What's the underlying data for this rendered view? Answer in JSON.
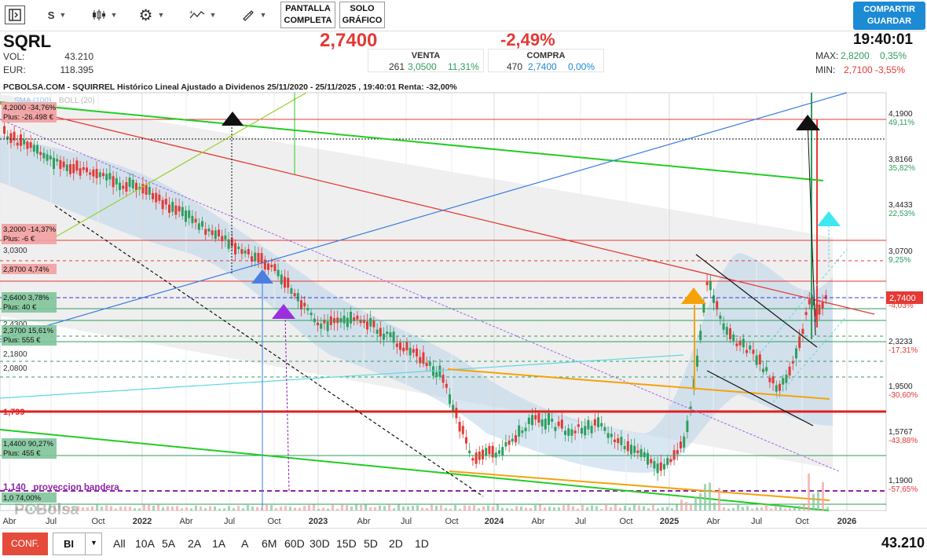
{
  "toolbar": {
    "symbol_button": "S",
    "fullscreen_label_1": "PANTALLA",
    "fullscreen_label_2": "COMPLETA",
    "chart_only_label_1": "SOLO",
    "chart_only_label_2": "GRÁFICO",
    "share_label_1": "COMPARTIR",
    "share_label_2": "GUARDAR"
  },
  "header": {
    "ticker": "SQRL",
    "vol_label": "VOL:",
    "vol_value": "43.210",
    "eur_label": "EUR:",
    "eur_value": "118.395",
    "last_price": "2,7400",
    "change_pct": "-2,49%",
    "time": "19:40:01",
    "sell": {
      "label": "VENTA",
      "qty": "261",
      "price": "3,0500",
      "pct": "11,31%"
    },
    "buy": {
      "label": "COMPRA",
      "qty": "470",
      "price": "2,7400",
      "pct": "0,00%"
    },
    "max_label": "MAX:",
    "max_value": "2,8200",
    "max_pct": "0,35%",
    "min_label": "MIN:",
    "min_value": "2,7100",
    "min_pct": "-3,55%"
  },
  "chart_data": {
    "type": "candlestick",
    "title": "PCBOLSA.COM - SQUIRREL Histórico Lineal Ajustado a Dividenos 25/11/2020 - 25/11/2025 , 19:40:01 Renta: -32,00%",
    "indicators": [
      "SMA (100)",
      "BOLL (20)"
    ],
    "x_ticks": [
      "Abr",
      "Jul",
      "Oct",
      "2022",
      "Abr",
      "Jul",
      "Oct",
      "2023",
      "Abr",
      "Jul",
      "Oct",
      "2024",
      "Abr",
      "Jul",
      "Oct",
      "2025",
      "Abr",
      "Jul",
      "Oct",
      "2026"
    ],
    "right_axis": [
      {
        "price": "4,1900",
        "pct": "49,11%"
      },
      {
        "price": "3,8166",
        "pct": "35,82%"
      },
      {
        "price": "3,4433",
        "pct": "22,53%"
      },
      {
        "price": "3,0700",
        "pct": "9,25%"
      },
      {
        "price": "2,7400",
        "pct": "-4,03%"
      },
      {
        "price": "2,3233",
        "pct": "-17,31%"
      },
      {
        "price": "1,9500",
        "pct": "-30,60%"
      },
      {
        "price": "1,5767",
        "pct": "-43,88%"
      },
      {
        "price": "1,1900",
        "pct": "-57,65%"
      }
    ],
    "left_labels": [
      {
        "price": "4,2000",
        "pct": "-34,76%",
        "plus": "Plus: -26.498 €"
      },
      {
        "price": "3,2000",
        "pct": "-14,37%",
        "plus": "Plus: -6 €"
      },
      {
        "price": "3,0300"
      },
      {
        "price": "2,8700",
        "pct": "4,74%"
      },
      {
        "price": "2,6400",
        "pct": "3,78%",
        "plus": "Plus: 40 €"
      },
      {
        "price": "2,4300"
      },
      {
        "price": "2,3700",
        "pct": "15,61%",
        "plus": "Plus: 555 €"
      },
      {
        "price": "2,1800"
      },
      {
        "price": "2,0800"
      },
      {
        "price": "1,4400",
        "pct": "90,27%",
        "plus": "Plus: 455 €"
      },
      {
        "price": "1,0",
        "pct": "74,00%"
      }
    ],
    "support_label": "1,799",
    "flag_label": "1,140   proyeccion bandera",
    "watermark": "PCBolsa",
    "ylim": [
      1.0,
      4.35
    ]
  },
  "bottom": {
    "config_label": "CONF.",
    "select_value": "BI",
    "ranges": [
      "All",
      "10A",
      "5A",
      "2A",
      "1A",
      "A",
      "6M",
      "60D",
      "30D",
      "15D",
      "5D",
      "2D",
      "1D"
    ],
    "volume": "43.210"
  },
  "colors": {
    "up": "#2e9e5e",
    "down": "#e53935",
    "accent": "#1d8ad4"
  }
}
